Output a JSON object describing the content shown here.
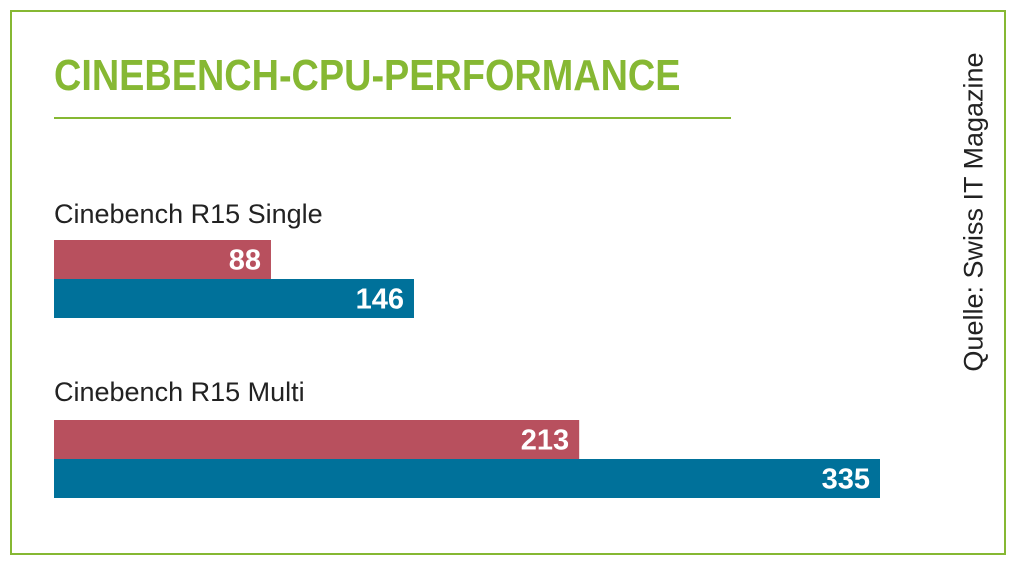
{
  "title": "CINEBENCH-CPU-PERFORMANCE",
  "source": "Quelle: Swiss IT Magazine",
  "colors": {
    "accent": "#86b833",
    "series_1": "#b8505e",
    "series_2": "#00719a",
    "label_text": "#ffffff",
    "category_text": "#222222"
  },
  "chart_data": {
    "type": "bar",
    "orientation": "horizontal",
    "title": "CINEBENCH-CPU-PERFORMANCE",
    "categories": [
      "Cinebench R15 Single",
      "Cinebench R15 Multi"
    ],
    "series": [
      {
        "values": [
          88,
          213
        ],
        "color": "#b8505e"
      },
      {
        "values": [
          146,
          335
        ],
        "color": "#00719a"
      }
    ],
    "xlabel": "",
    "ylabel": "",
    "xlim": [
      0,
      335
    ],
    "grid": false,
    "legend": "none",
    "data_labels": true
  }
}
